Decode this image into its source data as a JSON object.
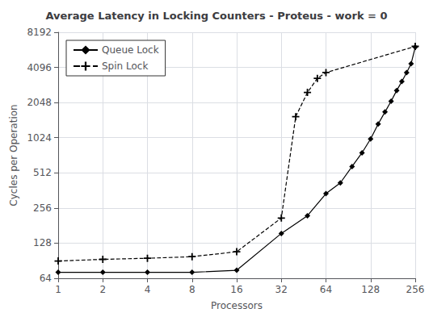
{
  "chart_data": {
    "type": "line",
    "title": "Average Latency in Locking Counters - Proteus - work = 0",
    "xlabel": "Processors",
    "ylabel": "Cycles per Operation",
    "series": [
      {
        "name": "Queue Lock",
        "color": "black",
        "marker": "diamond",
        "line_style": "solid",
        "x": [
          1,
          2,
          4,
          8,
          16,
          32,
          48,
          64,
          80,
          96,
          112,
          128,
          144,
          160,
          176,
          192,
          208,
          224,
          240,
          256
        ],
        "values": [
          72,
          72,
          72,
          72,
          75,
          155,
          220,
          340,
          420,
          580,
          760,
          1000,
          1340,
          1700,
          2100,
          2600,
          3100,
          3700,
          4400,
          6100
        ]
      },
      {
        "name": "Spin Lock",
        "color": "black",
        "marker": "plus",
        "line_style": "dashed",
        "x": [
          1,
          2,
          4,
          8,
          16,
          32,
          40,
          48,
          56,
          64,
          256
        ],
        "values": [
          90,
          93,
          95,
          98,
          108,
          210,
          1550,
          2500,
          3300,
          3700,
          6200
        ]
      }
    ],
    "xlim": [
      1,
      256
    ],
    "ylim": [
      64,
      8192
    ],
    "xticks": [
      1,
      2,
      4,
      8,
      16,
      32,
      64,
      128,
      256
    ],
    "yticks": [
      64,
      128,
      256,
      512,
      1024,
      2048,
      4096,
      8192
    ],
    "log": true,
    "grid": true,
    "legend": "upper left"
  }
}
